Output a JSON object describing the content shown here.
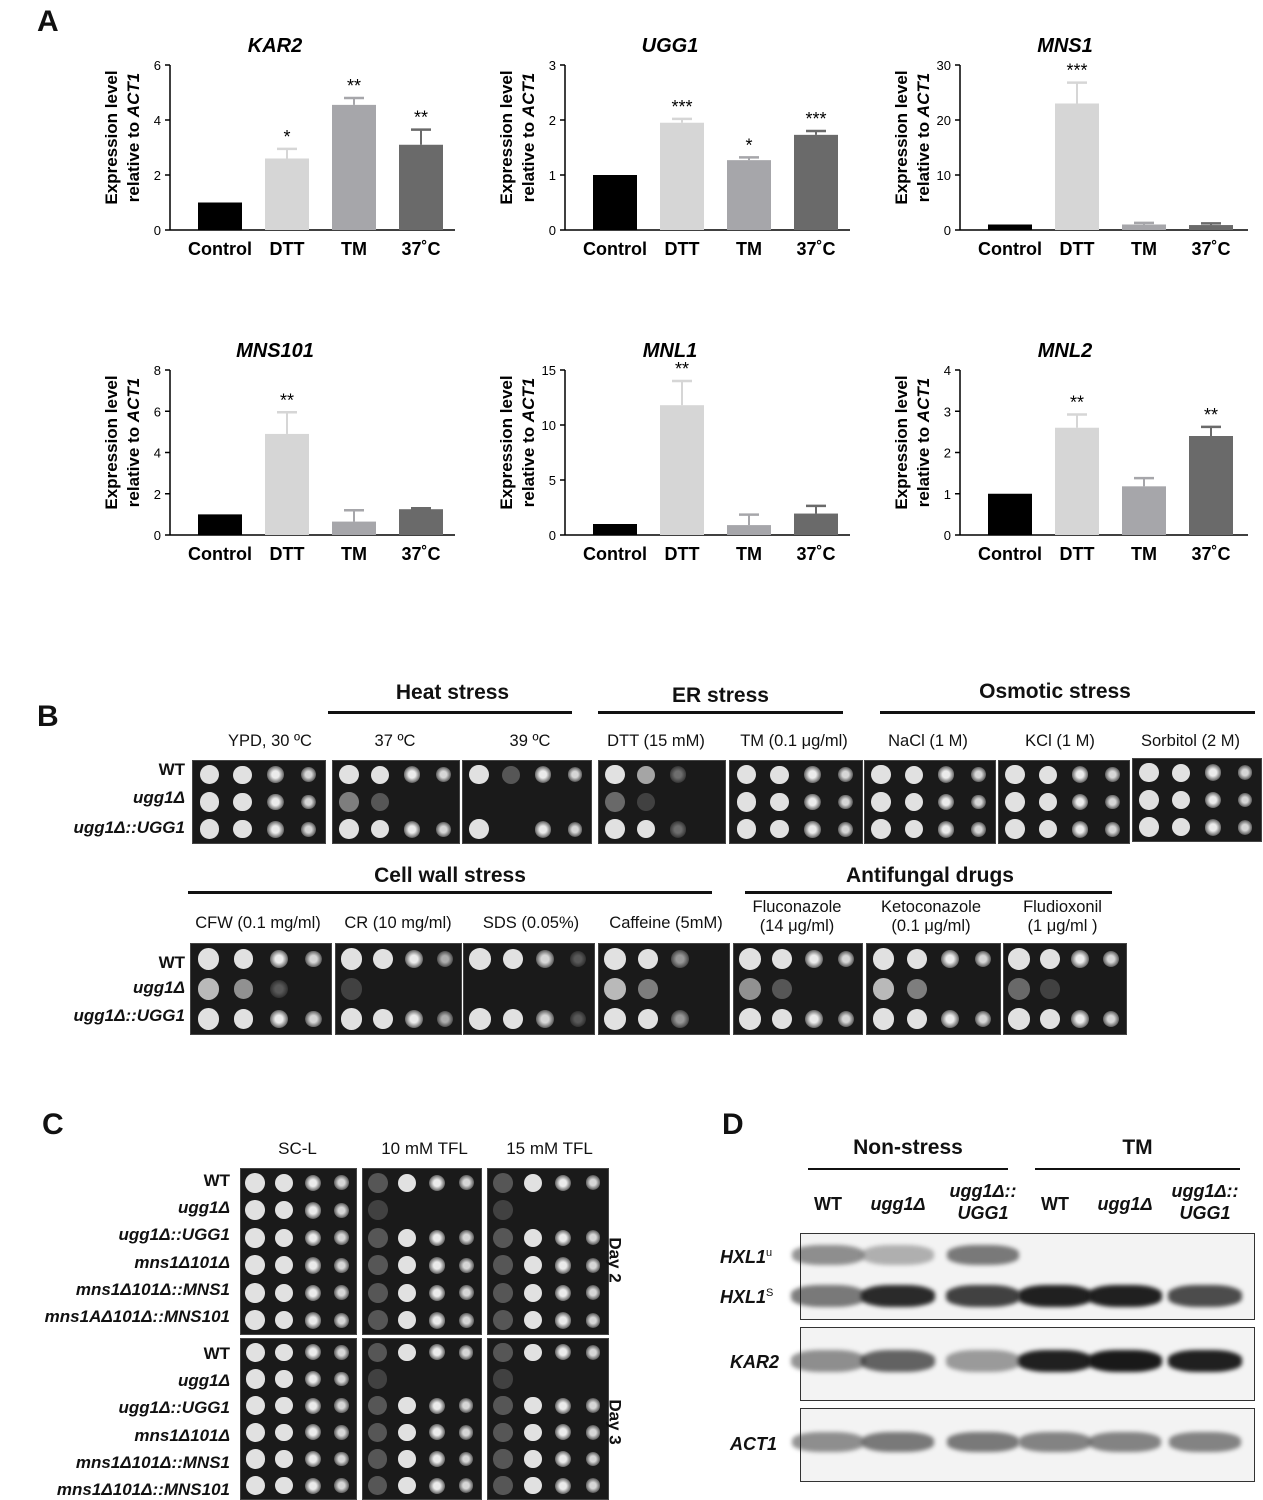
{
  "panels": {
    "a": "A",
    "b": "B",
    "c": "C",
    "d": "D"
  },
  "chart_data": [
    {
      "type": "bar",
      "title": "KAR2",
      "ylabel": "Expression level relative to ACT1",
      "ylabel_italic": "ACT1",
      "categories": [
        "Control",
        "DTT",
        "TM",
        "37˚C"
      ],
      "values": [
        1,
        2.6,
        4.55,
        3.1
      ],
      "errors": [
        0,
        0.35,
        0.25,
        0.55
      ],
      "significance": [
        "",
        "*",
        "**",
        "**"
      ],
      "ylim": [
        0,
        6
      ],
      "yticks": [
        0,
        2,
        4,
        6
      ]
    },
    {
      "type": "bar",
      "title": "UGG1",
      "ylabel": "Expression level relative to ACT1",
      "ylabel_italic": "ACT1",
      "categories": [
        "Control",
        "DTT",
        "TM",
        "37˚C"
      ],
      "values": [
        1,
        1.95,
        1.27,
        1.73
      ],
      "errors": [
        0,
        0.07,
        0.05,
        0.07
      ],
      "significance": [
        "",
        "***",
        "*",
        "***"
      ],
      "ylim": [
        0,
        3
      ],
      "yticks": [
        0,
        1,
        2,
        3
      ]
    },
    {
      "type": "bar",
      "title": "MNS1",
      "ylabel": "Expression level relative to ACT1",
      "ylabel_italic": "ACT1",
      "categories": [
        "Control",
        "DTT",
        "TM",
        "37˚C"
      ],
      "values": [
        1,
        23,
        1,
        0.9
      ],
      "errors": [
        0,
        3.8,
        0.3,
        0.3
      ],
      "significance": [
        "",
        "***",
        "",
        ""
      ],
      "ylim": [
        0,
        30
      ],
      "yticks": [
        0,
        10,
        20,
        30
      ]
    },
    {
      "type": "bar",
      "title": "MNS101",
      "ylabel": "Expression level relative to ACT1",
      "ylabel_italic": "ACT1",
      "categories": [
        "Control",
        "DTT",
        "TM",
        "37˚C"
      ],
      "values": [
        1,
        4.9,
        0.65,
        1.25
      ],
      "errors": [
        0,
        1.05,
        0.55,
        0.05
      ],
      "significance": [
        "",
        "**",
        "",
        ""
      ],
      "ylim": [
        0,
        8
      ],
      "yticks": [
        0,
        2,
        4,
        6,
        8
      ]
    },
    {
      "type": "bar",
      "title": "MNL1",
      "ylabel": "Expression level relative to ACT1",
      "ylabel_italic": "ACT1",
      "categories": [
        "Control",
        "DTT",
        "TM",
        "37˚C"
      ],
      "values": [
        1,
        11.8,
        0.9,
        1.95
      ],
      "errors": [
        0,
        2.2,
        0.95,
        0.7
      ],
      "significance": [
        "",
        "**",
        "",
        ""
      ],
      "ylim": [
        0,
        15
      ],
      "yticks": [
        0,
        5,
        10,
        15
      ]
    },
    {
      "type": "bar",
      "title": "MNL2",
      "ylabel": "Expression level relative to ACT1",
      "ylabel_italic": "ACT1",
      "categories": [
        "Control",
        "DTT",
        "TM",
        "37˚C"
      ],
      "values": [
        1,
        2.6,
        1.18,
        2.4
      ],
      "errors": [
        0,
        0.32,
        0.2,
        0.22
      ],
      "significance": [
        "",
        "**",
        "",
        "**"
      ],
      "ylim": [
        0,
        4
      ],
      "yticks": [
        0,
        1,
        2,
        3,
        4
      ]
    }
  ],
  "bar_colors": [
    "#000000",
    "#d6d6d6",
    "#a6a6aa",
    "#6a6a6a"
  ],
  "b": {
    "group_headers": {
      "heat": "Heat stress",
      "er": "ER stress",
      "osmotic": "Osmotic stress",
      "cellwall": "Cell wall stress",
      "antifungal": "Antifungal drugs"
    },
    "row1_conditions": [
      "YPD, 30 ºC",
      "37 ºC",
      "39 ºC",
      "DTT (15 mM)",
      "TM (0.1 μg/ml)",
      "NaCl (1 M)",
      "KCl (1 M)",
      "Sorbitol (2 M)"
    ],
    "row2_conditions": [
      "CFW (0.1 mg/ml)",
      "CR (10 mg/ml)",
      "SDS (0.05%)",
      "Caffeine (5mM)",
      "Fluconazole\n(14 μg/ml)",
      "Ketoconazole\n(0.1 μg/ml)",
      "Fludioxonil\n(1 μg/ml )"
    ],
    "strains": [
      "WT",
      "ugg1Δ",
      "ugg1Δ::UGG1"
    ]
  },
  "c": {
    "conditions": [
      "SC-L",
      "10 mM TFL",
      "15 mM TFL"
    ],
    "strains_day2": [
      "WT",
      "ugg1Δ",
      "ugg1Δ::UGG1",
      "mns1Δ101Δ",
      "mns1Δ101Δ::MNS1",
      "mns1AΔ101Δ::MNS101"
    ],
    "strains_day3": [
      "WT",
      "ugg1Δ",
      "ugg1Δ::UGG1",
      "mns1Δ101Δ",
      "mns1Δ101Δ::MNS1",
      "mns1Δ101Δ::MNS101"
    ],
    "days": [
      "Day 2",
      "Day 3"
    ]
  },
  "d": {
    "groups": [
      "Non-stress",
      "TM"
    ],
    "lanes": [
      "WT",
      "ugg1Δ",
      "ugg1Δ::\nUGG1",
      "WT",
      "ugg1Δ",
      "ugg1Δ::\nUGG1"
    ],
    "rows": {
      "hxl1u": "HXL1",
      "hxl1u_sup": "u",
      "hxl1s": "HXL1",
      "hxl1s_sup": "S",
      "kar2": "KAR2",
      "act1": "ACT1"
    }
  }
}
